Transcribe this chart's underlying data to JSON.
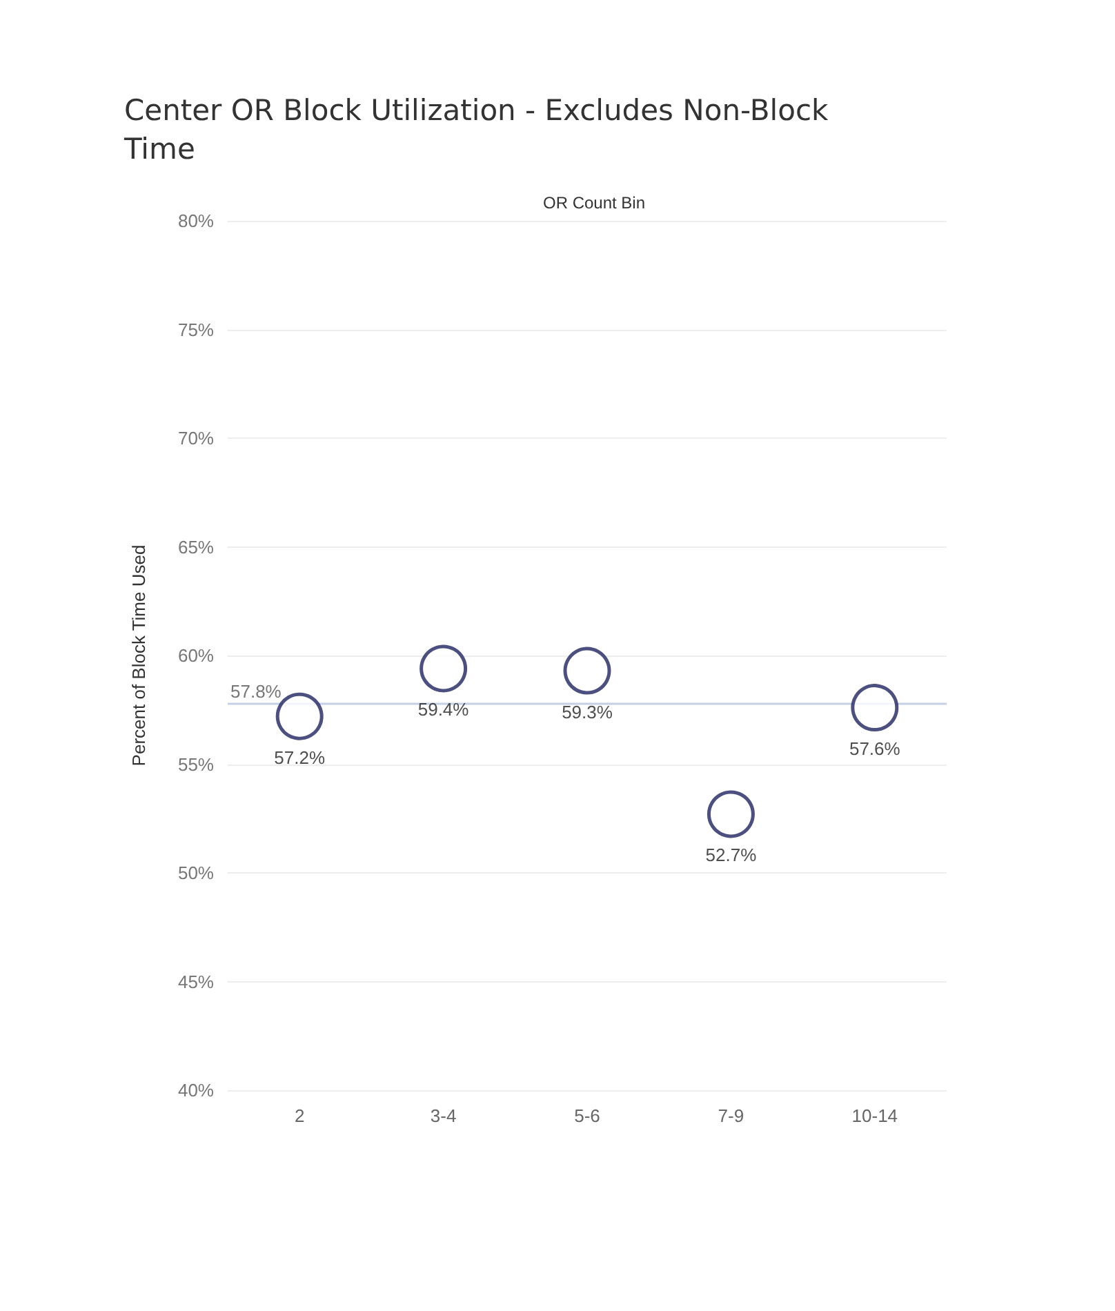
{
  "chart_data": {
    "type": "scatter",
    "title": "Center OR Block Utilization - Excludes Non-Block Time",
    "xlabel": "OR Count Bin",
    "ylabel": "Percent of Block Time Used",
    "categories": [
      "2",
      "3-4",
      "5-6",
      "7-9",
      "10-14"
    ],
    "series": [
      {
        "color": "#1f2460",
        "values": [
          57.2,
          59.4,
          59.3,
          52.7,
          57.6
        ],
        "value_labels": [
          "57.2%",
          "59.4%",
          "59.3%",
          "52.7%",
          "57.6%"
        ]
      }
    ],
    "ylim": [
      40,
      80
    ],
    "yticks": [
      {
        "value": 40,
        "label": "40%"
      },
      {
        "value": 45,
        "label": "45%"
      },
      {
        "value": 50,
        "label": "50%"
      },
      {
        "value": 55,
        "label": "55%"
      },
      {
        "value": 60,
        "label": "60%"
      },
      {
        "value": 65,
        "label": "65%"
      },
      {
        "value": 70,
        "label": "70%"
      },
      {
        "value": 75,
        "label": "75%"
      },
      {
        "value": 80,
        "label": "80%"
      }
    ],
    "ref_lines": [
      {
        "axis": "y",
        "value": 57.8,
        "label": "57.8%",
        "color": "#c5d0e6"
      }
    ],
    "grid": "y",
    "marker": "circle"
  }
}
